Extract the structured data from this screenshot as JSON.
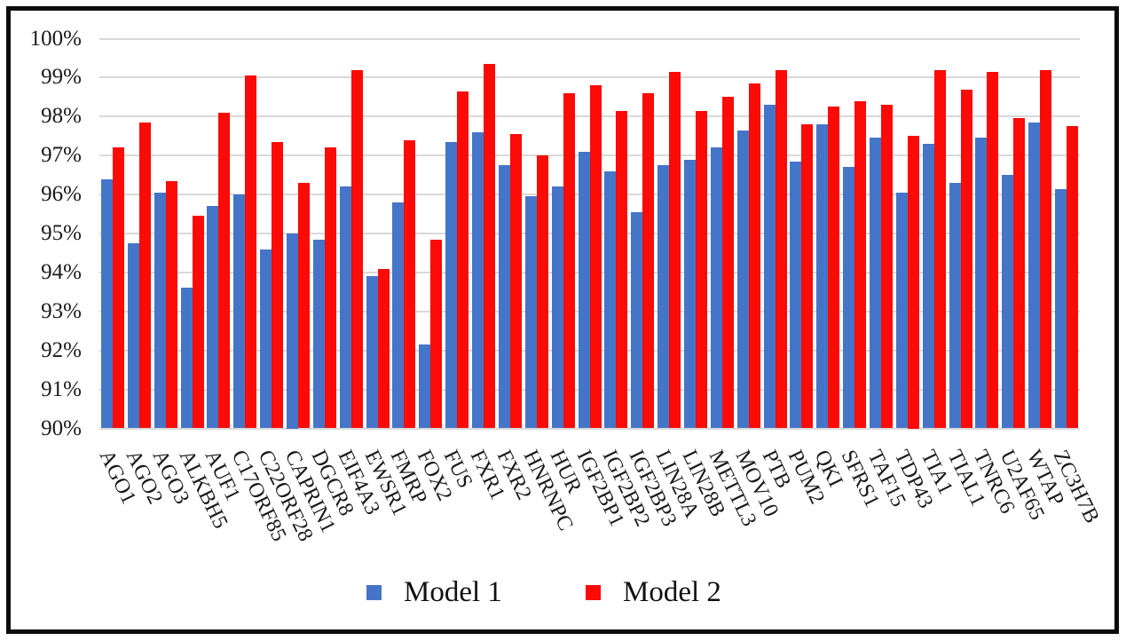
{
  "chart_data": {
    "type": "bar",
    "title": "",
    "xlabel": "",
    "ylabel": "",
    "ylim": [
      90,
      100
    ],
    "grid": true,
    "legend_position": "bottom",
    "y_ticks": [
      "100%",
      "99%",
      "98%",
      "97%",
      "96%",
      "95%",
      "94%",
      "93%",
      "92%",
      "91%",
      "90%"
    ],
    "categories": [
      "AGO1",
      "AGO2",
      "AGO3",
      "ALKBH5",
      "AUF1",
      "C17ORF85",
      "C22ORF28",
      "CAPRIN1",
      "DGCR8",
      "EIF4A3",
      "EWSR1",
      "FMRP",
      "FOX2",
      "FUS",
      "FXR1",
      "FXR2",
      "HNRNPC",
      "HUR",
      "IGF2BP1",
      "IGF2BP2",
      "IGF2BP3",
      "LIN28A",
      "LIN28B",
      "METTL3",
      "MOV10",
      "PTB",
      "PUM2",
      "QKI",
      "SFRS1",
      "TAF15",
      "TDP43",
      "TIA1",
      "TIAL1",
      "TNRC6",
      "U2AF65",
      "WTAP",
      "ZC3H7B"
    ],
    "series": [
      {
        "name": "Model 1",
        "color": "#4575c8",
        "values": [
          96.4,
          94.75,
          96.05,
          93.6,
          95.7,
          96.0,
          94.6,
          95.0,
          94.85,
          96.2,
          93.9,
          95.8,
          92.15,
          97.35,
          97.6,
          96.75,
          95.95,
          96.2,
          97.1,
          96.6,
          95.55,
          96.75,
          96.9,
          97.2,
          97.65,
          98.3,
          96.85,
          97.8,
          96.7,
          97.45,
          96.05,
          97.3,
          96.3,
          97.45,
          96.5,
          97.85,
          96.15
        ]
      },
      {
        "name": "Model 2",
        "color": "#fb0a06",
        "values": [
          97.2,
          97.85,
          96.35,
          95.45,
          98.1,
          99.05,
          97.35,
          96.3,
          97.2,
          99.2,
          94.1,
          97.4,
          94.85,
          98.65,
          99.35,
          97.55,
          97.0,
          98.6,
          98.8,
          98.15,
          98.6,
          99.15,
          98.15,
          98.5,
          98.85,
          99.2,
          97.8,
          98.25,
          98.4,
          98.3,
          97.5,
          99.2,
          98.7,
          99.15,
          97.95,
          99.2,
          97.75
        ]
      }
    ]
  }
}
